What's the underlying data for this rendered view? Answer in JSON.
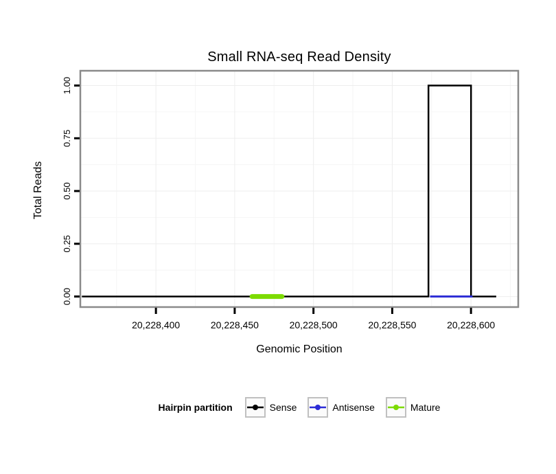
{
  "title": "Small RNA-seq Read Density",
  "chart_data": {
    "type": "line",
    "title": "Small RNA-seq Read Density",
    "xlabel": "Genomic Position",
    "ylabel": "Total Reads",
    "xlim": [
      20228352,
      20228630
    ],
    "ylim": [
      -0.05,
      1.07
    ],
    "grid": "major+minor",
    "legend_position": "bottom",
    "x_ticks": [
      {
        "v": 20228400,
        "label": "20,228,400"
      },
      {
        "v": 20228450,
        "label": "20,228,450"
      },
      {
        "v": 20228500,
        "label": "20,228,500"
      },
      {
        "v": 20228550,
        "label": "20,228,550"
      },
      {
        "v": 20228600,
        "label": "20,228,600"
      }
    ],
    "y_ticks": [
      {
        "v": 0.0,
        "label": "0.00"
      },
      {
        "v": 0.25,
        "label": "0.25"
      },
      {
        "v": 0.5,
        "label": "0.50"
      },
      {
        "v": 0.75,
        "label": "0.75"
      },
      {
        "v": 1.0,
        "label": "1.00"
      }
    ],
    "x_minor": [
      20228375,
      20228425,
      20228475,
      20228525,
      20228575,
      20228625
    ],
    "y_minor": [
      0.125,
      0.375,
      0.625,
      0.875
    ],
    "series": [
      {
        "name": "Sense",
        "color": "#000000",
        "line_width": 2.5,
        "points": [
          [
            20228353,
            0
          ],
          [
            20228573,
            0
          ],
          [
            20228573,
            1
          ],
          [
            20228600,
            1
          ],
          [
            20228600,
            0
          ],
          [
            20228616,
            0
          ]
        ]
      },
      {
        "name": "Antisense",
        "color": "#2B2BD5",
        "line_width": 3,
        "points": [
          [
            20228574,
            0
          ],
          [
            20228601,
            0
          ]
        ]
      },
      {
        "name": "Mature",
        "color": "#7CDB00",
        "line_width": 7,
        "points": [
          [
            20228461,
            0
          ],
          [
            20228480,
            0
          ]
        ]
      }
    ]
  },
  "legend": {
    "title": "Hairpin partition",
    "items": [
      {
        "label": "Sense",
        "color": "#000000"
      },
      {
        "label": "Antisense",
        "color": "#2B2BD5"
      },
      {
        "label": "Mature",
        "color": "#7CDB00"
      }
    ]
  },
  "colors": {
    "panel_border": "#8a8a8a",
    "grid_major": "#ededed",
    "grid_minor": "#f6f6f6",
    "tick": "#000000",
    "text": "#000000"
  }
}
